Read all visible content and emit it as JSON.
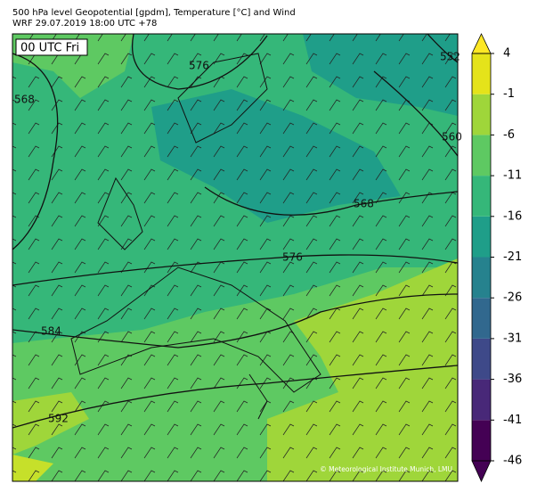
{
  "header": {
    "title": "500 hPa level Geopotential [gpdm], Temperature [°C] and Wind",
    "subtitle": "WRF 29.07.2019 18:00 UTC +78"
  },
  "map": {
    "time_label": "00 UTC Fri",
    "copyright": "© Meteorological Institute Munich, LMU",
    "contour_labels": [
      "576",
      "552",
      "568",
      "560",
      "568",
      "576",
      "584",
      "592"
    ]
  },
  "colorbar": {
    "levels": [
      -46,
      -41,
      -36,
      -31,
      -26,
      -21,
      -16,
      -11,
      -6,
      -1,
      4
    ],
    "colors": [
      "#440154",
      "#482878",
      "#3e4989",
      "#31688e",
      "#26828e",
      "#1f9e89",
      "#35b779",
      "#5ec962",
      "#9fd63a",
      "#e5e31a"
    ],
    "under_color": "#440154",
    "over_color": "#fde725"
  }
}
